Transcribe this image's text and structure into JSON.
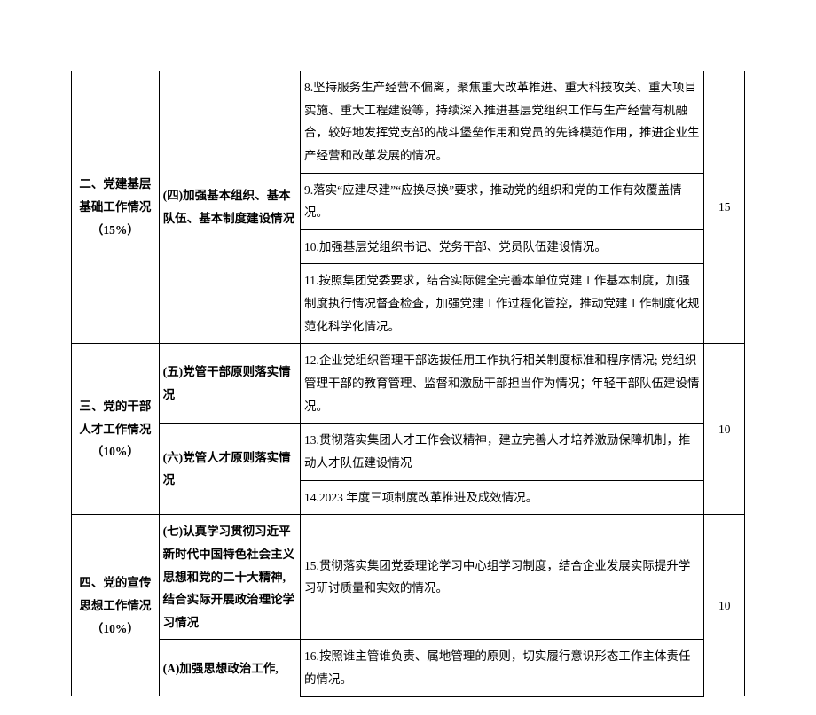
{
  "sections": [
    {
      "category": "二、党建基层基础工作情况（15%）",
      "sub": "(四)加强基本组织、基本队伍、基本制度建设情况",
      "items": [
        "8.坚持服务生产经营不偏离，聚焦重大改革推进、重大科技攻关、重大项目实施、重大工程建设等，持续深入推进基层党组织工作与生产经营有机融合，较好地发挥党支部的战斗堡垒作用和党员的先锋模范作用，推进企业生产经营和改革发展的情况。",
        "9.落实“应建尽建”“应换尽换”要求，推动党的组织和党的工作有效覆盖情况。",
        "10.加强基层党组织书记、党务干部、党员队伍建设情况。",
        "11.按照集团党委要求，结合实际健全完善本单位党建工作基本制度，加强制度执行情况督查检查，加强党建工作过程化管控，推动党建工作制度化规范化科学化情况。"
      ],
      "score": "15"
    },
    {
      "category": "三、党的干部人才工作情况（10%）",
      "subs": [
        {
          "label": "(五)党管干部原则落实情况",
          "items": [
            "12.企业党组织管理干部选拔任用工作执行相关制度标准和程序情况; 党组织管理干部的教育管理、监督和激励干部担当作为情况；年轻干部队伍建设情况。"
          ]
        },
        {
          "label": "(六)党管人才原则落实情况",
          "items": [
            "13.贯彻落实集团人才工作会议精神，建立完善人才培养激励保障机制，推动人才队伍建设情况",
            "14.2023 年度三项制度改革推进及成效情况。"
          ]
        }
      ],
      "score": "10"
    },
    {
      "category": "四、党的宣传思想工作情况（10%）",
      "subs": [
        {
          "label": "(七)认真学习贯彻习近平新时代中国特色社会主义思想和党的二十大精神,结合实际开展政治理论学习情况",
          "items": [
            "15.贯彻落实集团党委理论学习中心组学习制度，结合企业发展实际提升学习研讨质量和实效的情况。"
          ]
        },
        {
          "label": "(A)加强思想政治工作,",
          "items": [
            "16.按照谁主管谁负责、属地管理的原则，切实履行意识形态工作主体责任的情况。"
          ]
        }
      ],
      "score": "10"
    }
  ]
}
